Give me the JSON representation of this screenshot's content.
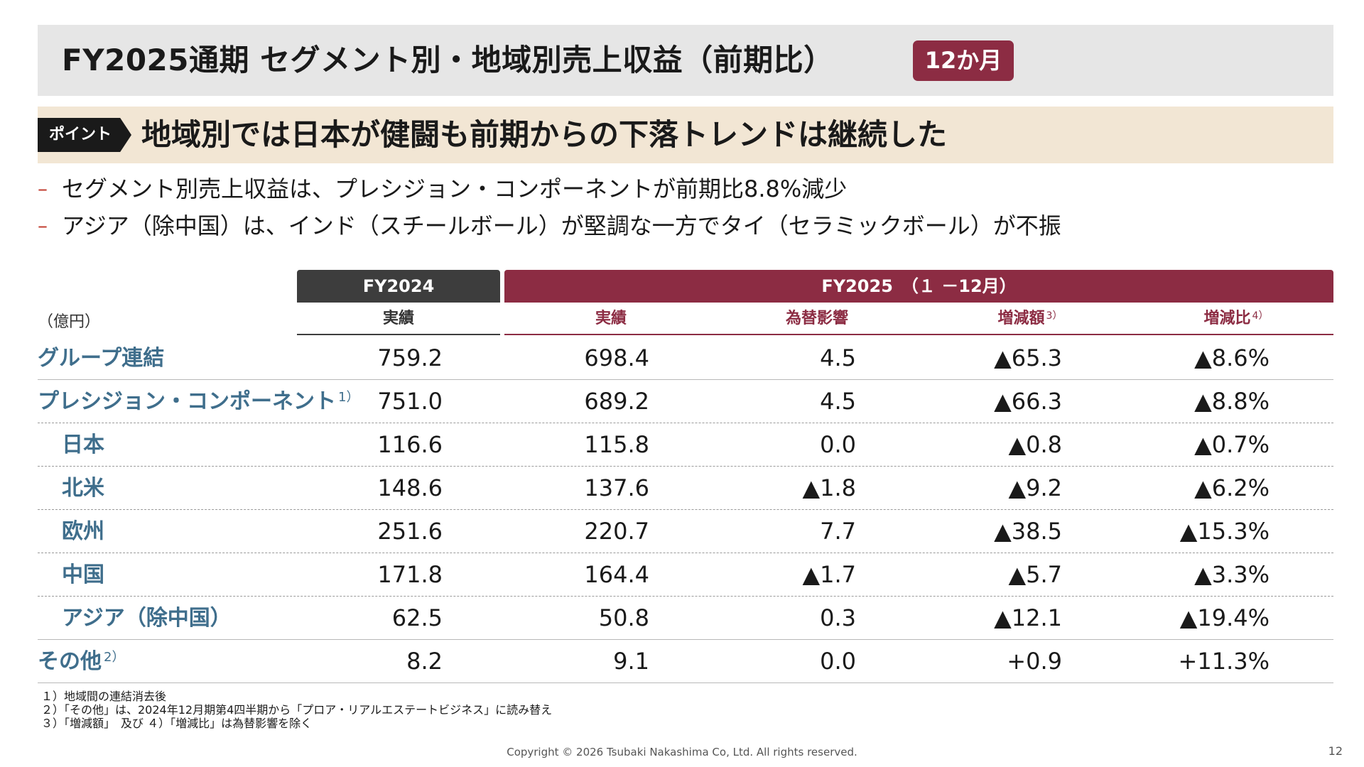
{
  "title": "FY2025通期 セグメント別・地域別売上収益（前期比）",
  "badge": "12か月",
  "point": {
    "tag": "ポイント",
    "text": "地域別では日本が健闘も前期からの下落トレンドは継続した"
  },
  "bullets": [
    "セグメント別売上収益は、プレシジョン・コンポーネントが前期比8.8%減少",
    "アジア（除中国）は、インド（スチールボール）が堅調な一方でタイ（セラミックボール）が不振"
  ],
  "table": {
    "header_fy2024": "FY2024",
    "header_fy2025": "FY2025　（１ －12月）",
    "unit": "（億円）",
    "subheaders": {
      "fy2024_actual": "実績",
      "actual": "実績",
      "fx": "為替影響",
      "change_amount": "増減額",
      "change_amount_note": "3）",
      "change_ratio": "増減比",
      "change_ratio_note": "4）"
    },
    "rows": [
      {
        "label": "グループ連結",
        "note": "",
        "fy2024": "759.2",
        "fy2025": "698.4",
        "fx": "4.5",
        "amount": "▲65.3",
        "ratio": "▲8.6%"
      },
      {
        "label": "プレシジョン・コンポーネント",
        "note": "1）",
        "fy2024": "751.0",
        "fy2025": "689.2",
        "fx": "4.5",
        "amount": "▲66.3",
        "ratio": "▲8.8%"
      },
      {
        "label": "日本",
        "note": "",
        "fy2024": "116.6",
        "fy2025": "115.8",
        "fx": "0.0",
        "amount": "▲0.8",
        "ratio": "▲0.7%"
      },
      {
        "label": "北米",
        "note": "",
        "fy2024": "148.6",
        "fy2025": "137.6",
        "fx": "▲1.8",
        "amount": "▲9.2",
        "ratio": "▲6.2%"
      },
      {
        "label": "欧州",
        "note": "",
        "fy2024": "251.6",
        "fy2025": "220.7",
        "fx": "7.7",
        "amount": "▲38.5",
        "ratio": "▲15.3%"
      },
      {
        "label": "中国",
        "note": "",
        "fy2024": "171.8",
        "fy2025": "164.4",
        "fx": "▲1.7",
        "amount": "▲5.7",
        "ratio": "▲3.3%"
      },
      {
        "label": "アジア（除中国）",
        "note": "",
        "fy2024": "62.5",
        "fy2025": "50.8",
        "fx": "0.3",
        "amount": "▲12.1",
        "ratio": "▲19.4%"
      },
      {
        "label": "その他",
        "note": "2）",
        "fy2024": "8.2",
        "fy2025": "9.1",
        "fx": "0.0",
        "amount": "+0.9",
        "ratio": "+11.3%"
      }
    ]
  },
  "notes": [
    "１）地域間の連結消去後",
    "２）「その他」は、2024年12月期第4四半期から「プロア・リアルエステートビジネス」に読み替え",
    "３）「増減額」　及び ４）「増減比」は為替影響を除く"
  ],
  "copyright": "Copyright © 2026 Tsubaki Nakashima Co, Ltd. All rights reserved.",
  "page_number": "12",
  "colors": {
    "accent": "#8c2c43",
    "dark_header": "#3d3d3d",
    "label_blue": "#3f6e8c",
    "point_band": "#f2e6d4",
    "title_band": "#e6e6e6"
  }
}
